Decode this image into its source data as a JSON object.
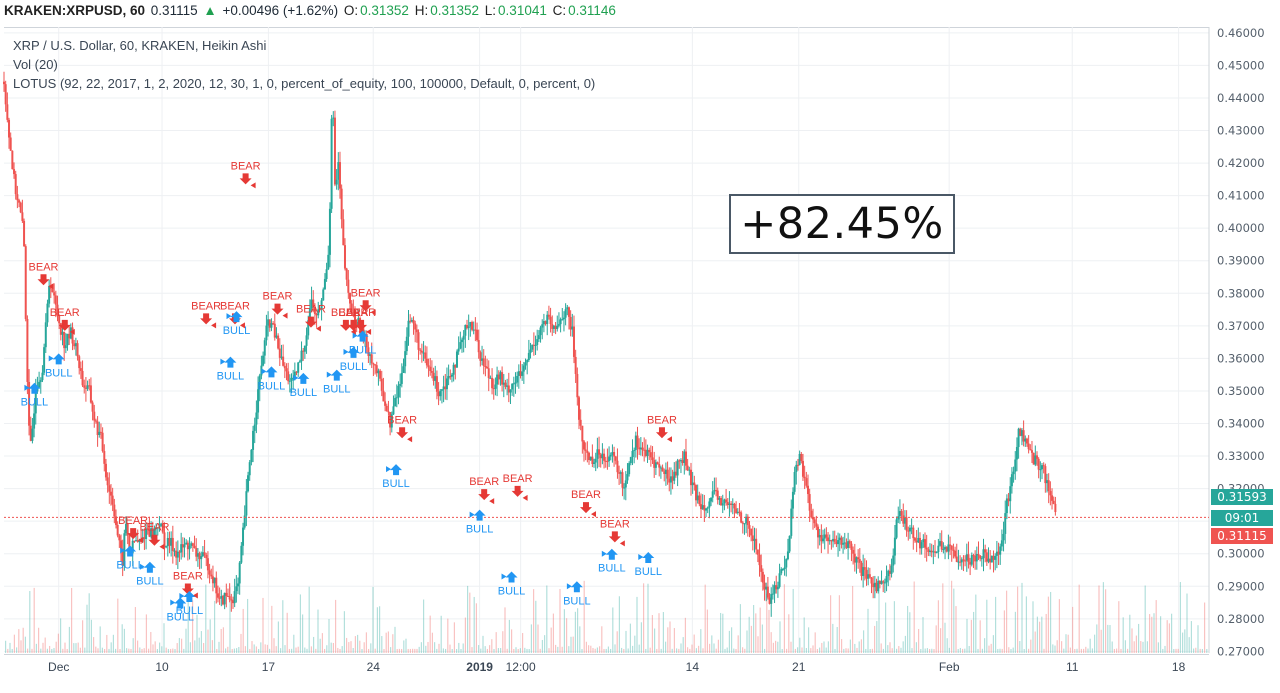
{
  "header": {
    "symbol": "KRAKEN:XRPUSD, 60",
    "last": "0.31115",
    "change_arrow": "▲",
    "change": "+0.00496 (+1.62%)",
    "o_label": "O:",
    "o_value": "0.31352",
    "h_label": "H:",
    "h_value": "0.31352",
    "l_label": "L:",
    "l_value": "0.31041",
    "c_label": "C:",
    "c_value": "0.31146"
  },
  "legend": {
    "title": "XRP / U.S. Dollar, 60, KRAKEN, Heikin Ashi",
    "volume": "Vol (20)",
    "indicator": "LOTUS (92, 22, 2017, 1, 2, 2020, 12, 30, 1, 0, percent_of_equity, 100, 100000, Default, 0, percent, 0)"
  },
  "performance": {
    "text": "+82.45%"
  },
  "badges": {
    "upper": {
      "text": "0.31593",
      "color": "#26a69a"
    },
    "countdown": {
      "text": "09:01",
      "color": "#26a69a"
    },
    "last": {
      "text": "0.31115",
      "color": "#ef5350"
    }
  },
  "colors": {
    "up": "#26a69a",
    "down": "#ef5350",
    "bull": "#2196f3",
    "bear": "#e53935",
    "last_line": "#ef5350"
  },
  "chart_data": {
    "type": "line",
    "style": "heikin-ashi candles with volume",
    "y_ticks": [
      "0.46000",
      "0.45000",
      "0.44000",
      "0.43000",
      "0.42000",
      "0.41000",
      "0.40000",
      "0.39000",
      "0.38000",
      "0.37000",
      "0.36000",
      "0.35000",
      "0.34000",
      "0.33000",
      "0.32000",
      "0.31000",
      "0.30000",
      "0.29000",
      "0.28000",
      "0.27000"
    ],
    "ylim": [
      0.2695,
      0.4618
    ],
    "x_ticks": [
      {
        "label": "Dec",
        "x": 3.6
      },
      {
        "label": "10",
        "x": 10.4
      },
      {
        "label": "17",
        "x": 17.4
      },
      {
        "label": "24",
        "x": 24.3
      },
      {
        "label": "2019",
        "x": 31.3,
        "bold": true
      },
      {
        "label": "12:00",
        "x": 34.0
      },
      {
        "label": "14",
        "x": 45.3
      },
      {
        "label": "21",
        "x": 52.3
      },
      {
        "label": "Feb",
        "x": 62.2
      },
      {
        "label": "11",
        "x": 70.3
      },
      {
        "label": "18",
        "x": 77.3
      }
    ],
    "xlim": [
      0,
      79.3
    ],
    "price_path": [
      [
        0,
        0.445
      ],
      [
        0.3,
        0.43
      ],
      [
        0.7,
        0.413
      ],
      [
        1.0,
        0.407
      ],
      [
        1.3,
        0.398
      ],
      [
        1.5,
        0.36
      ],
      [
        1.7,
        0.33
      ],
      [
        1.9,
        0.34
      ],
      [
        2.1,
        0.352
      ],
      [
        2.5,
        0.356
      ],
      [
        2.8,
        0.372
      ],
      [
        3.0,
        0.385
      ],
      [
        3.3,
        0.378
      ],
      [
        3.6,
        0.372
      ],
      [
        4.0,
        0.364
      ],
      [
        4.4,
        0.368
      ],
      [
        4.8,
        0.362
      ],
      [
        5.2,
        0.352
      ],
      [
        5.6,
        0.35
      ],
      [
        6.0,
        0.34
      ],
      [
        6.4,
        0.335
      ],
      [
        6.8,
        0.322
      ],
      [
        7.2,
        0.315
      ],
      [
        7.5,
        0.305
      ],
      [
        7.8,
        0.297
      ],
      [
        8.0,
        0.31
      ],
      [
        8.3,
        0.3
      ],
      [
        8.6,
        0.304
      ],
      [
        9.0,
        0.303
      ],
      [
        9.4,
        0.308
      ],
      [
        9.8,
        0.306
      ],
      [
        10.2,
        0.31
      ],
      [
        10.6,
        0.303
      ],
      [
        11.0,
        0.303
      ],
      [
        11.4,
        0.3
      ],
      [
        11.8,
        0.302
      ],
      [
        12.2,
        0.303
      ],
      [
        12.6,
        0.3
      ],
      [
        13.0,
        0.299
      ],
      [
        13.4,
        0.297
      ],
      [
        13.8,
        0.292
      ],
      [
        14.2,
        0.285
      ],
      [
        14.6,
        0.287
      ],
      [
        15.0,
        0.286
      ],
      [
        15.4,
        0.29
      ],
      [
        15.8,
        0.31
      ],
      [
        16.2,
        0.33
      ],
      [
        16.6,
        0.345
      ],
      [
        17.0,
        0.36
      ],
      [
        17.4,
        0.372
      ],
      [
        17.8,
        0.368
      ],
      [
        18.2,
        0.36
      ],
      [
        18.6,
        0.355
      ],
      [
        19.0,
        0.352
      ],
      [
        19.4,
        0.358
      ],
      [
        19.8,
        0.365
      ],
      [
        20.2,
        0.378
      ],
      [
        20.6,
        0.372
      ],
      [
        21.0,
        0.38
      ],
      [
        21.4,
        0.395
      ],
      [
        21.6,
        0.445
      ],
      [
        21.8,
        0.41
      ],
      [
        22.0,
        0.42
      ],
      [
        22.3,
        0.395
      ],
      [
        22.6,
        0.38
      ],
      [
        23.0,
        0.373
      ],
      [
        23.4,
        0.37
      ],
      [
        23.8,
        0.365
      ],
      [
        24.2,
        0.36
      ],
      [
        24.6,
        0.355
      ],
      [
        25.0,
        0.348
      ],
      [
        25.4,
        0.34
      ],
      [
        25.8,
        0.348
      ],
      [
        26.2,
        0.355
      ],
      [
        26.6,
        0.372
      ],
      [
        27.0,
        0.37
      ],
      [
        27.4,
        0.362
      ],
      [
        27.8,
        0.358
      ],
      [
        28.2,
        0.355
      ],
      [
        28.6,
        0.35
      ],
      [
        29.0,
        0.352
      ],
      [
        29.4,
        0.356
      ],
      [
        29.8,
        0.36
      ],
      [
        30.2,
        0.366
      ],
      [
        30.6,
        0.372
      ],
      [
        31.0,
        0.368
      ],
      [
        31.4,
        0.36
      ],
      [
        31.8,
        0.356
      ],
      [
        32.2,
        0.352
      ],
      [
        32.6,
        0.355
      ],
      [
        33.0,
        0.35
      ],
      [
        33.4,
        0.352
      ],
      [
        33.8,
        0.354
      ],
      [
        34.2,
        0.356
      ],
      [
        34.6,
        0.362
      ],
      [
        35.0,
        0.366
      ],
      [
        35.4,
        0.37
      ],
      [
        35.8,
        0.372
      ],
      [
        36.2,
        0.368
      ],
      [
        36.6,
        0.372
      ],
      [
        37.0,
        0.375
      ],
      [
        37.4,
        0.368
      ],
      [
        37.7,
        0.35
      ],
      [
        38.0,
        0.335
      ],
      [
        38.4,
        0.33
      ],
      [
        38.8,
        0.329
      ],
      [
        39.2,
        0.331
      ],
      [
        39.6,
        0.33
      ],
      [
        40.0,
        0.33
      ],
      [
        40.4,
        0.326
      ],
      [
        40.8,
        0.32
      ],
      [
        41.2,
        0.33
      ],
      [
        41.6,
        0.335
      ],
      [
        42.0,
        0.332
      ],
      [
        42.4,
        0.33
      ],
      [
        42.8,
        0.328
      ],
      [
        43.2,
        0.326
      ],
      [
        43.6,
        0.324
      ],
      [
        44.0,
        0.323
      ],
      [
        44.4,
        0.328
      ],
      [
        44.8,
        0.33
      ],
      [
        45.2,
        0.322
      ],
      [
        45.6,
        0.317
      ],
      [
        46.0,
        0.315
      ],
      [
        46.4,
        0.316
      ],
      [
        46.8,
        0.318
      ],
      [
        47.2,
        0.316
      ],
      [
        47.6,
        0.315
      ],
      [
        48.0,
        0.314
      ],
      [
        48.4,
        0.312
      ],
      [
        48.8,
        0.31
      ],
      [
        49.2,
        0.306
      ],
      [
        49.6,
        0.3
      ],
      [
        50.0,
        0.29
      ],
      [
        50.4,
        0.286
      ],
      [
        50.8,
        0.29
      ],
      [
        51.2,
        0.295
      ],
      [
        51.6,
        0.3
      ],
      [
        52.0,
        0.325
      ],
      [
        52.4,
        0.33
      ],
      [
        52.8,
        0.32
      ],
      [
        53.2,
        0.31
      ],
      [
        53.6,
        0.306
      ],
      [
        54.0,
        0.305
      ],
      [
        54.4,
        0.303
      ],
      [
        54.8,
        0.303
      ],
      [
        55.2,
        0.304
      ],
      [
        55.6,
        0.302
      ],
      [
        56.0,
        0.298
      ],
      [
        56.4,
        0.295
      ],
      [
        56.8,
        0.292
      ],
      [
        57.2,
        0.291
      ],
      [
        57.6,
        0.29
      ],
      [
        58.0,
        0.293
      ],
      [
        58.4,
        0.295
      ],
      [
        58.8,
        0.312
      ],
      [
        59.2,
        0.31
      ],
      [
        59.6,
        0.308
      ],
      [
        60.0,
        0.305
      ],
      [
        60.4,
        0.303
      ],
      [
        60.8,
        0.302
      ],
      [
        61.2,
        0.3
      ],
      [
        61.6,
        0.303
      ],
      [
        62.0,
        0.302
      ],
      [
        62.4,
        0.3
      ],
      [
        62.8,
        0.299
      ],
      [
        63.2,
        0.299
      ],
      [
        63.6,
        0.298
      ],
      [
        64.0,
        0.3
      ],
      [
        64.4,
        0.3
      ],
      [
        64.8,
        0.299
      ],
      [
        65.2,
        0.3
      ],
      [
        65.6,
        0.301
      ],
      [
        66.0,
        0.315
      ],
      [
        66.4,
        0.325
      ],
      [
        66.8,
        0.338
      ],
      [
        67.2,
        0.335
      ],
      [
        67.6,
        0.33
      ],
      [
        68.0,
        0.328
      ],
      [
        68.4,
        0.326
      ],
      [
        68.8,
        0.318
      ],
      [
        69.2,
        0.314
      ]
    ],
    "signals": [
      {
        "type": "BEAR",
        "x": 2.6,
        "y": 0.384
      },
      {
        "type": "BULL",
        "x": 2.0,
        "y": 0.351
      },
      {
        "type": "BEAR",
        "x": 4.0,
        "y": 0.37
      },
      {
        "type": "BULL",
        "x": 3.6,
        "y": 0.36
      },
      {
        "type": "BEAR",
        "x": 8.5,
        "y": 0.306
      },
      {
        "type": "BULL",
        "x": 8.3,
        "y": 0.301
      },
      {
        "type": "BEAR",
        "x": 9.9,
        "y": 0.304
      },
      {
        "type": "BULL",
        "x": 9.6,
        "y": 0.296
      },
      {
        "type": "BEAR",
        "x": 12.1,
        "y": 0.289
      },
      {
        "type": "BULL",
        "x": 11.6,
        "y": 0.285
      },
      {
        "type": "BULL",
        "x": 12.2,
        "y": 0.287
      },
      {
        "type": "BEAR",
        "x": 13.3,
        "y": 0.372
      },
      {
        "type": "BEAR",
        "x": 15.2,
        "y": 0.372
      },
      {
        "type": "BULL",
        "x": 14.9,
        "y": 0.359
      },
      {
        "type": "BULL",
        "x": 15.3,
        "y": 0.373
      },
      {
        "type": "BEAR",
        "x": 15.9,
        "y": 0.415
      },
      {
        "type": "BEAR",
        "x": 18.0,
        "y": 0.375
      },
      {
        "type": "BULL",
        "x": 17.6,
        "y": 0.356
      },
      {
        "type": "BEAR",
        "x": 20.2,
        "y": 0.371
      },
      {
        "type": "BULL",
        "x": 19.7,
        "y": 0.354
      },
      {
        "type": "BULL",
        "x": 21.9,
        "y": 0.355
      },
      {
        "type": "BEAR",
        "x": 22.5,
        "y": 0.37
      },
      {
        "type": "BEAR",
        "x": 23.0,
        "y": 0.37
      },
      {
        "type": "BEAR",
        "x": 23.5,
        "y": 0.37
      },
      {
        "type": "BULL",
        "x": 23.0,
        "y": 0.362
      },
      {
        "type": "BULL",
        "x": 23.6,
        "y": 0.367
      },
      {
        "type": "BEAR",
        "x": 23.8,
        "y": 0.376
      },
      {
        "type": "BEAR",
        "x": 26.2,
        "y": 0.337
      },
      {
        "type": "BULL",
        "x": 25.8,
        "y": 0.326
      },
      {
        "type": "BEAR",
        "x": 31.6,
        "y": 0.318
      },
      {
        "type": "BULL",
        "x": 31.3,
        "y": 0.312
      },
      {
        "type": "BEAR",
        "x": 33.8,
        "y": 0.319
      },
      {
        "type": "BULL",
        "x": 33.4,
        "y": 0.293
      },
      {
        "type": "BEAR",
        "x": 38.3,
        "y": 0.314
      },
      {
        "type": "BULL",
        "x": 37.7,
        "y": 0.29
      },
      {
        "type": "BEAR",
        "x": 40.2,
        "y": 0.305
      },
      {
        "type": "BULL",
        "x": 40.0,
        "y": 0.3
      },
      {
        "type": "BULL",
        "x": 42.4,
        "y": 0.299
      },
      {
        "type": "BEAR",
        "x": 43.3,
        "y": 0.337
      }
    ],
    "last_price_line": 0.31115
  }
}
